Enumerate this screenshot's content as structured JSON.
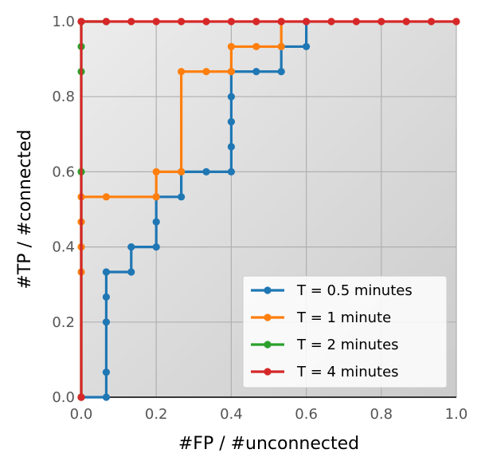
{
  "chart_data": {
    "type": "line",
    "title": "",
    "xlabel": "#FP / #unconnected",
    "ylabel": "#TP / #connected",
    "xlim": [
      0,
      1
    ],
    "ylim": [
      0,
      1
    ],
    "xticks": [
      "0.0",
      "0.2",
      "0.4",
      "0.6",
      "0.8",
      "1.0"
    ],
    "yticks": [
      "0.0",
      "0.2",
      "0.4",
      "0.6",
      "0.8",
      "1.0"
    ],
    "grid": true,
    "legend_position": "lower-right",
    "series": [
      {
        "name": "T = 0.5 minutes",
        "color": "#1f77b4",
        "points": [
          [
            0,
            0
          ],
          [
            0.0667,
            0
          ],
          [
            0.0667,
            0.0667
          ],
          [
            0.0667,
            0.2
          ],
          [
            0.0667,
            0.2667
          ],
          [
            0.0667,
            0.3333
          ],
          [
            0.1333,
            0.3333
          ],
          [
            0.1333,
            0.4
          ],
          [
            0.2,
            0.4
          ],
          [
            0.2,
            0.4667
          ],
          [
            0.2,
            0.5333
          ],
          [
            0.2667,
            0.5333
          ],
          [
            0.2667,
            0.6
          ],
          [
            0.3333,
            0.6
          ],
          [
            0.4,
            0.6
          ],
          [
            0.4,
            0.6667
          ],
          [
            0.4,
            0.7333
          ],
          [
            0.4,
            0.8
          ],
          [
            0.4,
            0.8667
          ],
          [
            0.4667,
            0.8667
          ],
          [
            0.5333,
            0.8667
          ],
          [
            0.5333,
            0.9333
          ],
          [
            0.6,
            0.9333
          ],
          [
            0.6,
            1.0
          ]
        ]
      },
      {
        "name": "T = 1 minute",
        "color": "#ff7f0e",
        "points": [
          [
            0,
            0
          ],
          [
            0,
            0.3333
          ],
          [
            0,
            0.4
          ],
          [
            0,
            0.4667
          ],
          [
            0,
            0.5333
          ],
          [
            0.0667,
            0.5333
          ],
          [
            0.2,
            0.5333
          ],
          [
            0.2,
            0.6
          ],
          [
            0.2667,
            0.6
          ],
          [
            0.2667,
            0.8667
          ],
          [
            0.3333,
            0.8667
          ],
          [
            0.4,
            0.8667
          ],
          [
            0.4,
            0.9333
          ],
          [
            0.4667,
            0.9333
          ],
          [
            0.5333,
            0.9333
          ],
          [
            0.5333,
            1.0
          ]
        ]
      },
      {
        "name": "T = 2 minutes",
        "color": "#2ca02c",
        "points": [
          [
            0,
            0
          ],
          [
            0,
            0.6
          ],
          [
            0,
            0.8667
          ],
          [
            0,
            0.9333
          ],
          [
            0,
            1.0
          ],
          [
            0.0667,
            1.0
          ]
        ]
      },
      {
        "name": "T = 4 minutes",
        "color": "#d62728",
        "points": [
          [
            0,
            0
          ],
          [
            0,
            1.0
          ],
          [
            0.0667,
            1.0
          ],
          [
            0.1333,
            1.0
          ],
          [
            0.2,
            1.0
          ],
          [
            0.2667,
            1.0
          ],
          [
            0.3333,
            1.0
          ],
          [
            0.4,
            1.0
          ],
          [
            0.4667,
            1.0
          ],
          [
            0.5333,
            1.0
          ],
          [
            0.6,
            1.0
          ],
          [
            0.6667,
            1.0
          ],
          [
            0.7333,
            1.0
          ],
          [
            0.8,
            1.0
          ],
          [
            0.8667,
            1.0
          ],
          [
            0.9333,
            1.0
          ],
          [
            1.0,
            1.0
          ]
        ]
      }
    ]
  }
}
